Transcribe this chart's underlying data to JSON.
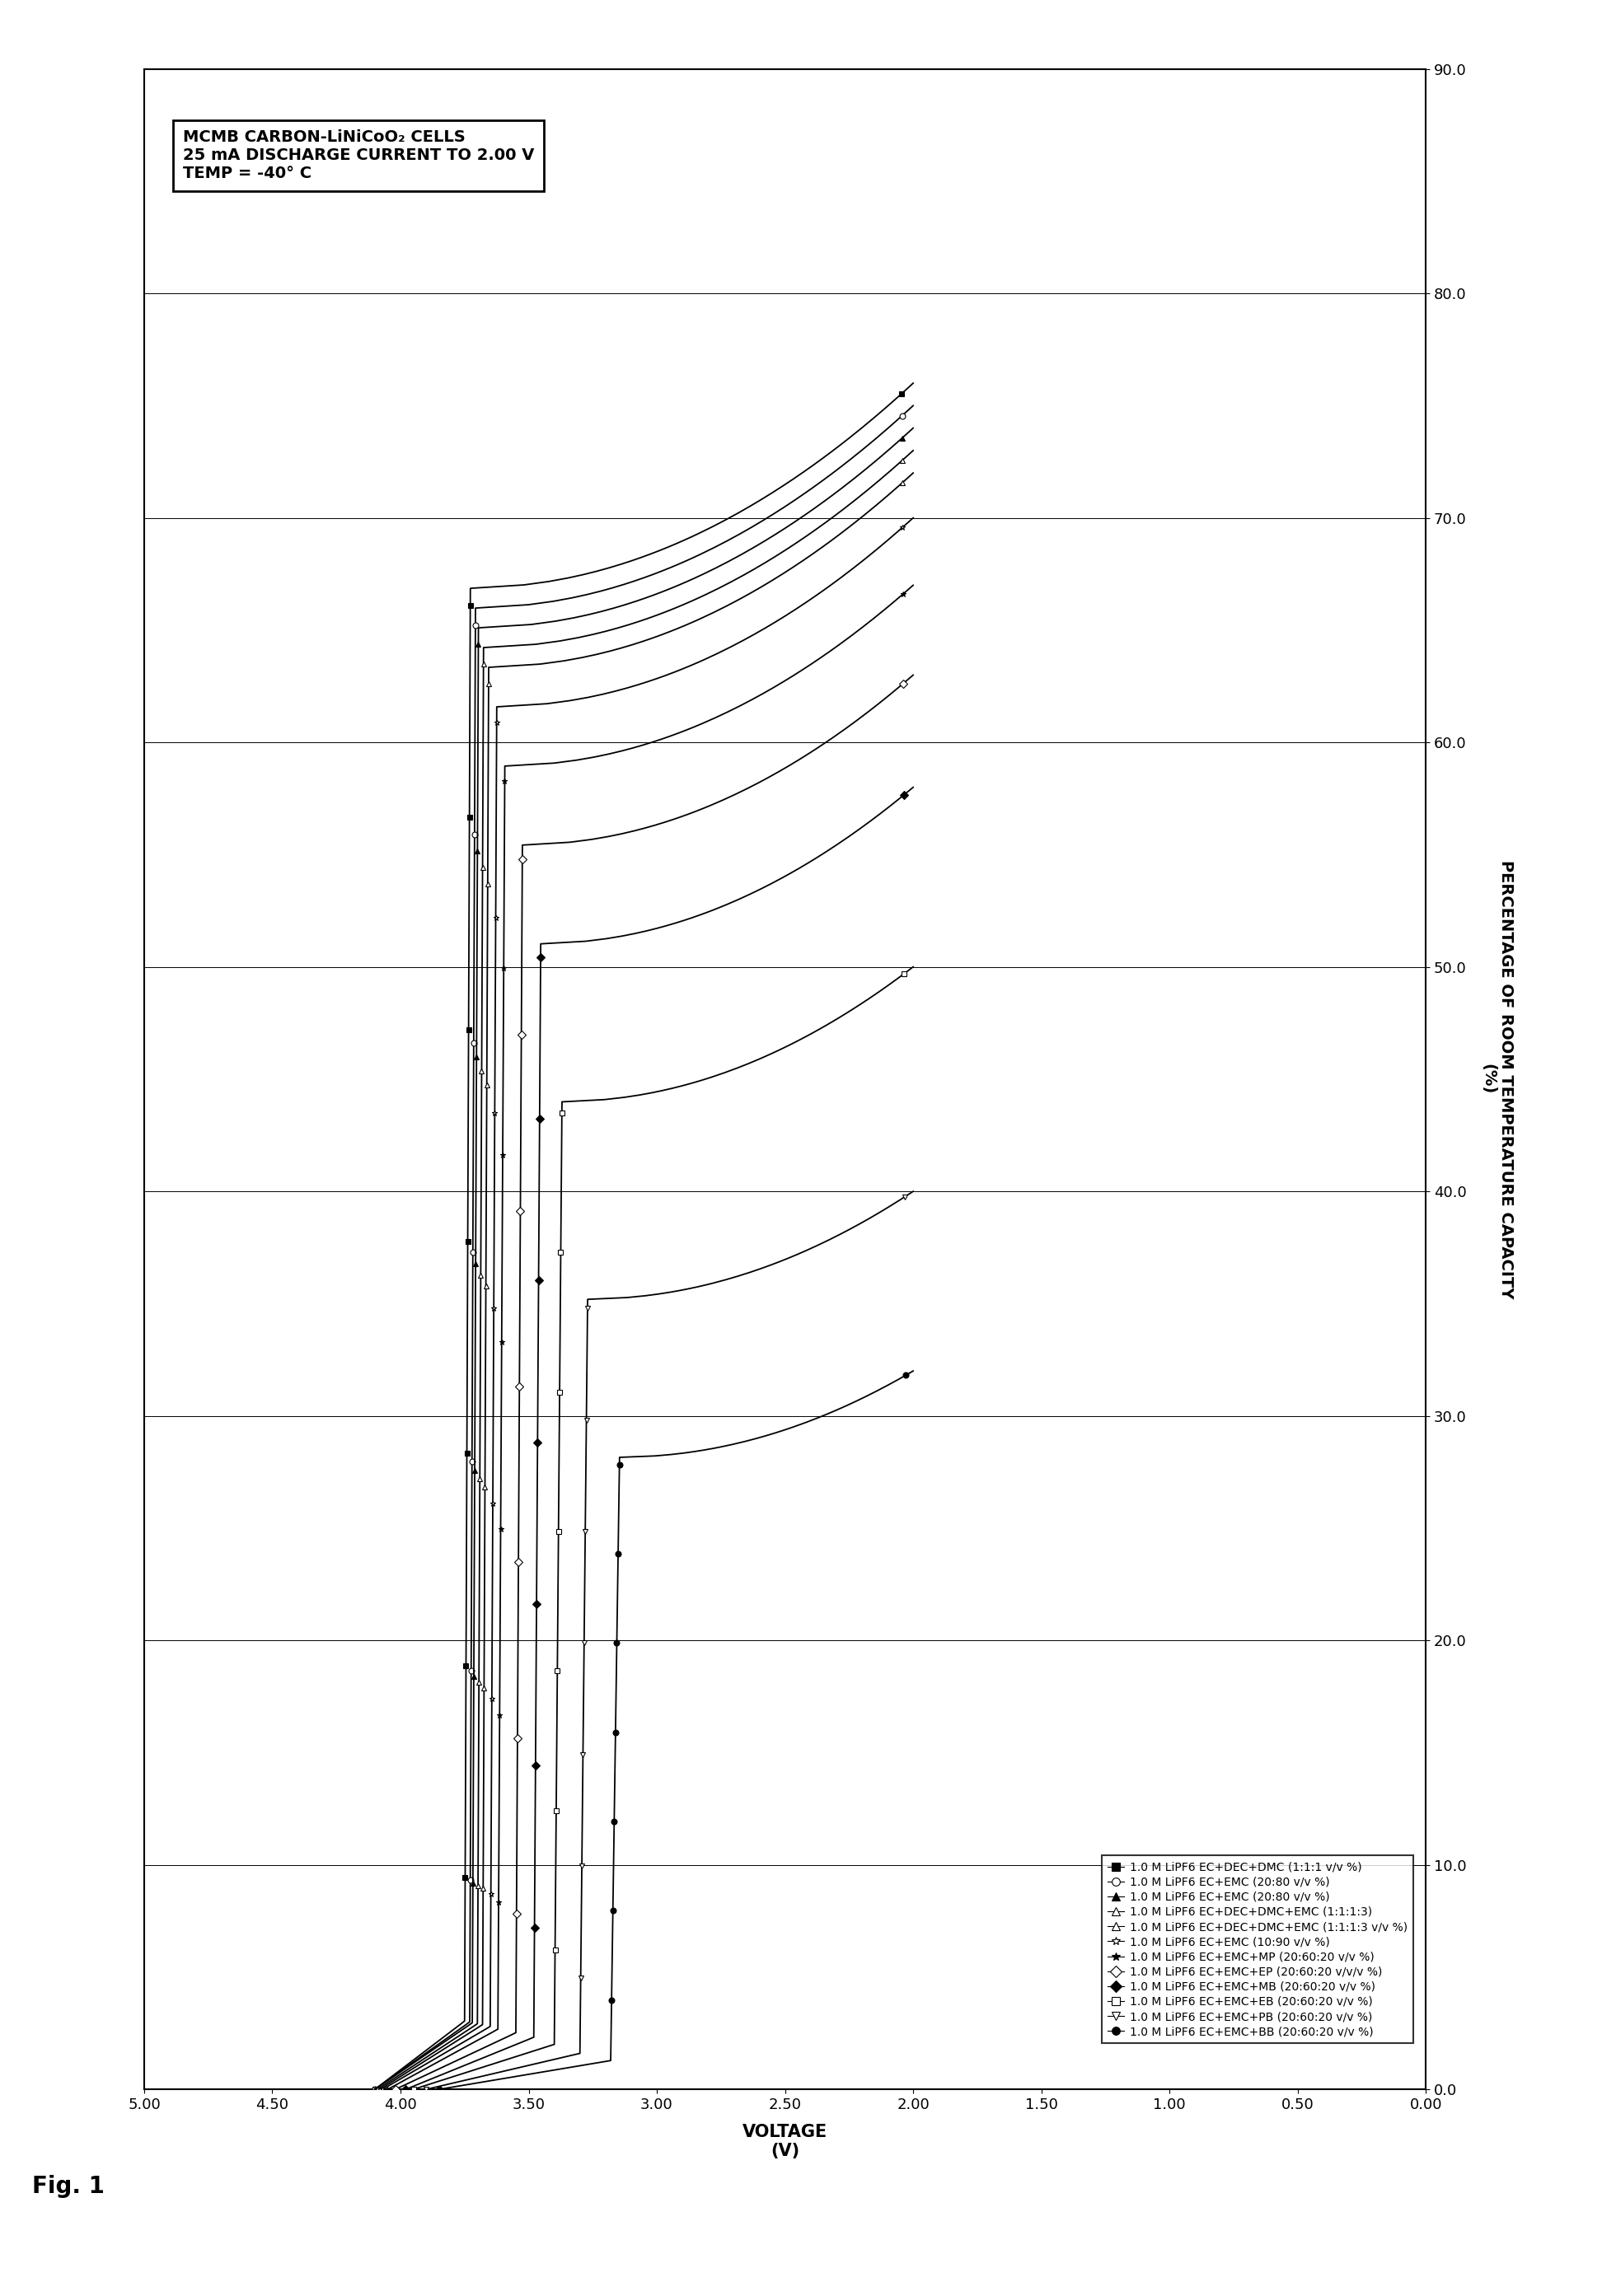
{
  "title_line1": "MCMB CARBON-LiNiCoO₂ CELLS",
  "title_line2": "25 mA DISCHARGE CURRENT TO 2.00 V",
  "title_line3": "TEMP = -40° C",
  "xlabel_bottom": "VOLTAGE\n(V)",
  "ylabel_right": "PERCENTAGE OF ROOM TEMPERATURE CAPACITY\n(%)",
  "fig_label": "Fig. 1",
  "xlim": [
    5.0,
    0.0
  ],
  "ylim": [
    0.0,
    90.0
  ],
  "xticks": [
    5.0,
    4.5,
    4.0,
    3.5,
    3.0,
    2.5,
    2.0,
    1.5,
    1.0,
    0.5,
    0.0
  ],
  "yticks": [
    0.0,
    10.0,
    20.0,
    30.0,
    40.0,
    50.0,
    60.0,
    70.0,
    80.0,
    90.0
  ],
  "legend_entries": [
    {
      "marker": "s",
      "filled": true,
      "label": "1.0 M LiPF6 EC+DEC+DMC (1:1:1 v/v %)"
    },
    {
      "marker": "o",
      "filled": false,
      "label": "1.0 M LiPF6 EC+EMC (20:80 v/v %)"
    },
    {
      "marker": "^",
      "filled": true,
      "label": "1.0 M LiPF6 EC+EMC (20:80 v/v %)"
    },
    {
      "marker": "^",
      "filled": false,
      "label": "1.0 M LiPF6 EC+DEC+DMC+EMC (1:1:1:3)"
    },
    {
      "marker": "^",
      "filled": false,
      "label": "1.0 M LiPF6 EC+DEC+DMC+EMC (1:1:1:3 v/v %)"
    },
    {
      "marker": "*",
      "filled": false,
      "label": "1.0 M LiPF6 EC+EMC (10:90 v/v %)"
    },
    {
      "marker": "*",
      "filled": true,
      "label": "1.0 M LiPF6 EC+EMC+MP (20:60:20 v/v %)"
    },
    {
      "marker": "D",
      "filled": false,
      "label": "1.0 M LiPF6 EC+EMC+EP (20:60:20 v/v/v %)"
    },
    {
      "marker": "D",
      "filled": true,
      "label": "1.0 M LiPF6 EC+EMC+MB (20:60:20 v/v %)"
    },
    {
      "marker": "s",
      "filled": false,
      "label": "1.0 M LiPF6 EC+EMC+EB (20:60:20 v/v %)"
    },
    {
      "marker": "v",
      "filled": false,
      "label": "1.0 M LiPF6 EC+EMC+PB (20:60:20 v/v %)"
    },
    {
      "marker": "o",
      "filled": true,
      "label": "1.0 M LiPF6 EC+EMC+BB (20:60:20 v/v %)"
    }
  ],
  "curve_params": [
    {
      "cap": 76,
      "v_high": 4.1,
      "v_plat": 3.75,
      "v_knee_start": 3.6,
      "v_knee_end": 2.0
    },
    {
      "cap": 75,
      "v_high": 4.1,
      "v_plat": 3.73,
      "v_knee_start": 3.58,
      "v_knee_end": 2.0
    },
    {
      "cap": 74,
      "v_high": 4.1,
      "v_plat": 3.72,
      "v_knee_start": 3.56,
      "v_knee_end": 2.0
    },
    {
      "cap": 73,
      "v_high": 4.09,
      "v_plat": 3.7,
      "v_knee_start": 3.54,
      "v_knee_end": 2.0
    },
    {
      "cap": 72,
      "v_high": 4.08,
      "v_plat": 3.68,
      "v_knee_start": 3.52,
      "v_knee_end": 2.0
    },
    {
      "cap": 70,
      "v_high": 4.07,
      "v_plat": 3.65,
      "v_knee_start": 3.48,
      "v_knee_end": 2.0
    },
    {
      "cap": 67,
      "v_high": 4.05,
      "v_plat": 3.62,
      "v_knee_start": 3.44,
      "v_knee_end": 2.0
    },
    {
      "cap": 63,
      "v_high": 4.02,
      "v_plat": 3.55,
      "v_knee_start": 3.38,
      "v_knee_end": 2.0
    },
    {
      "cap": 58,
      "v_high": 3.98,
      "v_plat": 3.48,
      "v_knee_start": 3.3,
      "v_knee_end": 2.0
    },
    {
      "cap": 50,
      "v_high": 3.95,
      "v_plat": 3.4,
      "v_knee_start": 3.2,
      "v_knee_end": 2.0
    },
    {
      "cap": 40,
      "v_high": 3.9,
      "v_plat": 3.3,
      "v_knee_start": 3.1,
      "v_knee_end": 2.0
    },
    {
      "cap": 32,
      "v_high": 3.85,
      "v_plat": 3.18,
      "v_knee_start": 2.95,
      "v_knee_end": 2.0
    }
  ],
  "background_color": "#ffffff",
  "line_color": "#000000"
}
